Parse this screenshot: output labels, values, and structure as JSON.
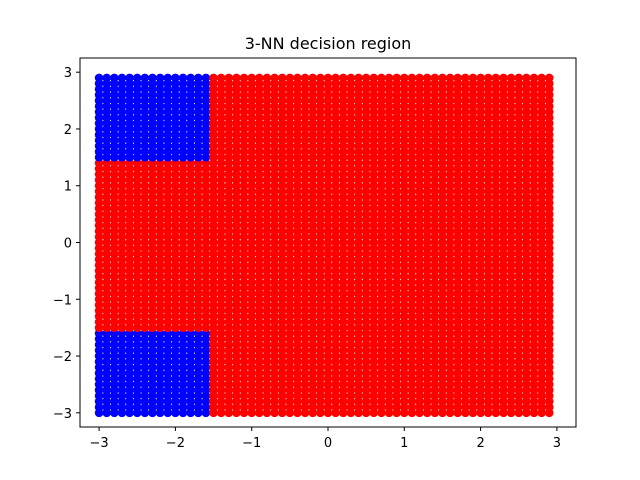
{
  "chart_data": {
    "type": "scatter",
    "title": "3-NN decision region",
    "xlabel": "",
    "ylabel": "",
    "xlim": [
      -3.25,
      3.25
    ],
    "ylim": [
      -3.25,
      3.25
    ],
    "x_ticks": [
      -3,
      -2,
      -1,
      0,
      1,
      2,
      3
    ],
    "y_ticks": [
      -3,
      -2,
      -1,
      0,
      1,
      2,
      3
    ],
    "x_tick_labels": [
      "−3",
      "−2",
      "−1",
      "0",
      "1",
      "2",
      "3"
    ],
    "y_tick_labels": [
      "−3",
      "−2",
      "−1",
      "0",
      "1",
      "2",
      "3"
    ],
    "grid": false,
    "legend": "none",
    "grid_points": {
      "x_start": -3.0,
      "x_end": 2.9,
      "y_start": -3.0,
      "y_end": 2.9,
      "step": 0.1
    },
    "series": [
      {
        "color": "#0000ff",
        "regions": [
          {
            "x_range": [
              -3.0,
              -1.5
            ],
            "y_range": [
              1.5,
              2.9
            ]
          },
          {
            "x_range": [
              -3.0,
              -1.5
            ],
            "y_range": [
              -3.0,
              -1.6
            ]
          }
        ]
      },
      {
        "color": "#ff0000",
        "regions": [
          {
            "x_range": [
              -1.5,
              2.9
            ],
            "y_range": [
              -3.0,
              2.9
            ]
          },
          {
            "x_range": [
              -3.0,
              -1.5
            ],
            "y_range": [
              -1.6,
              1.5
            ]
          }
        ]
      }
    ],
    "colors": {
      "class_a": "#0000ff",
      "class_b": "#ff0000",
      "axes": "#000000"
    }
  }
}
